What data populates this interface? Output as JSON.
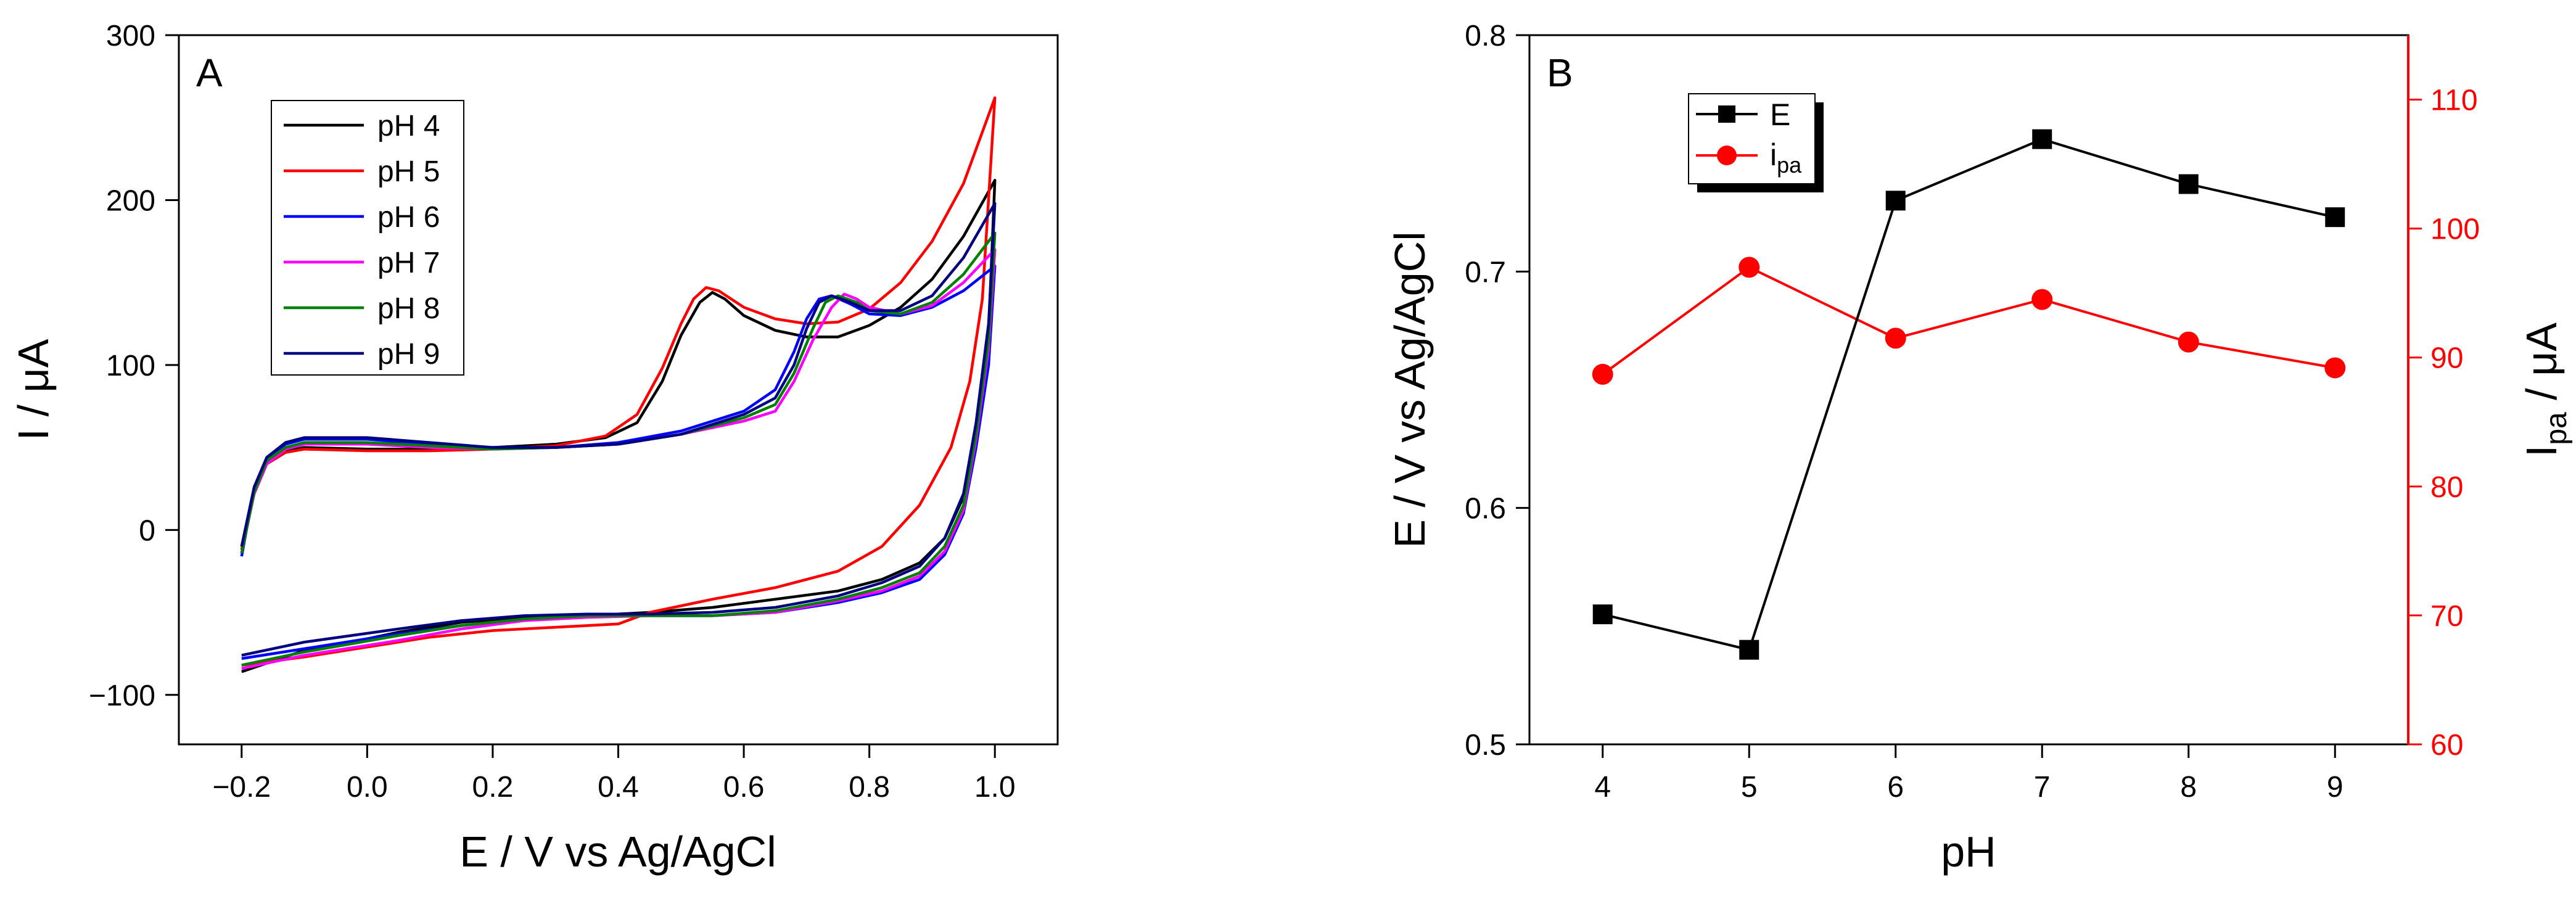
{
  "chart_data": [
    {
      "panel": "A",
      "type": "line",
      "xlabel": "E / V vs Ag/AgCl",
      "ylabel": "I / μA",
      "xlim": [
        -0.3,
        1.1
      ],
      "ylim": [
        -130,
        300
      ],
      "xticks": [
        -0.2,
        0.0,
        0.2,
        0.4,
        0.6,
        0.8,
        1.0
      ],
      "xtick_labels": [
        "−0.2",
        "0.0",
        "0.2",
        "0.4",
        "0.6",
        "0.8",
        "1.0"
      ],
      "yticks": [
        -100,
        0,
        100,
        200,
        300
      ],
      "ytick_labels": [
        "−100",
        "0",
        "100",
        "200",
        "300"
      ],
      "legend_position": "top-left",
      "series": [
        {
          "name": "pH 4",
          "color": "#000000",
          "forward": [
            [
              -0.2,
              -10
            ],
            [
              -0.18,
              22
            ],
            [
              -0.16,
              40
            ],
            [
              -0.13,
              48
            ],
            [
              -0.1,
              50
            ],
            [
              0,
              49
            ],
            [
              0.1,
              49
            ],
            [
              0.2,
              50
            ],
            [
              0.3,
              52
            ],
            [
              0.38,
              56
            ],
            [
              0.43,
              65
            ],
            [
              0.47,
              90
            ],
            [
              0.5,
              118
            ],
            [
              0.53,
              138
            ],
            [
              0.55,
              144
            ],
            [
              0.57,
              140
            ],
            [
              0.6,
              130
            ],
            [
              0.65,
              121
            ],
            [
              0.7,
              117
            ],
            [
              0.75,
              117
            ],
            [
              0.8,
              124
            ],
            [
              0.85,
              135
            ],
            [
              0.9,
              152
            ],
            [
              0.95,
              178
            ],
            [
              1.0,
              212
            ]
          ],
          "reverse": [
            [
              1.0,
              212
            ],
            [
              0.99,
              120
            ],
            [
              0.97,
              60
            ],
            [
              0.95,
              20
            ],
            [
              0.92,
              -5
            ],
            [
              0.88,
              -20
            ],
            [
              0.82,
              -30
            ],
            [
              0.75,
              -37
            ],
            [
              0.65,
              -42
            ],
            [
              0.55,
              -47
            ],
            [
              0.45,
              -50
            ],
            [
              0.35,
              -52
            ],
            [
              0.25,
              -53
            ],
            [
              0.15,
              -56
            ],
            [
              0.05,
              -62
            ],
            [
              0.0,
              -66
            ],
            [
              -0.1,
              -73
            ],
            [
              -0.2,
              -86
            ]
          ]
        },
        {
          "name": "pH 5",
          "color": "#ff0000",
          "forward": [
            [
              -0.2,
              -12
            ],
            [
              -0.18,
              22
            ],
            [
              -0.16,
              40
            ],
            [
              -0.13,
              47
            ],
            [
              -0.1,
              49
            ],
            [
              0,
              48
            ],
            [
              0.1,
              48
            ],
            [
              0.2,
              49
            ],
            [
              0.3,
              51
            ],
            [
              0.38,
              57
            ],
            [
              0.43,
              70
            ],
            [
              0.47,
              98
            ],
            [
              0.5,
              125
            ],
            [
              0.52,
              140
            ],
            [
              0.54,
              147
            ],
            [
              0.56,
              145
            ],
            [
              0.6,
              135
            ],
            [
              0.65,
              128
            ],
            [
              0.7,
              125
            ],
            [
              0.75,
              126
            ],
            [
              0.8,
              134
            ],
            [
              0.85,
              150
            ],
            [
              0.9,
              175
            ],
            [
              0.95,
              210
            ],
            [
              1.0,
              262
            ]
          ],
          "reverse": [
            [
              1.0,
              262
            ],
            [
              0.98,
              140
            ],
            [
              0.96,
              90
            ],
            [
              0.93,
              50
            ],
            [
              0.88,
              15
            ],
            [
              0.82,
              -10
            ],
            [
              0.75,
              -25
            ],
            [
              0.65,
              -35
            ],
            [
              0.55,
              -42
            ],
            [
              0.45,
              -50
            ],
            [
              0.4,
              -57
            ],
            [
              0.3,
              -59
            ],
            [
              0.2,
              -61
            ],
            [
              0.1,
              -65
            ],
            [
              0.0,
              -71
            ],
            [
              -0.1,
              -77
            ],
            [
              -0.2,
              -82
            ]
          ]
        },
        {
          "name": "pH 6",
          "color": "#0000ff",
          "forward": [
            [
              -0.2,
              -16
            ],
            [
              -0.18,
              25
            ],
            [
              -0.16,
              43
            ],
            [
              -0.13,
              52
            ],
            [
              -0.1,
              55
            ],
            [
              0,
              55
            ],
            [
              0.1,
              52
            ],
            [
              0.2,
              50
            ],
            [
              0.3,
              50
            ],
            [
              0.4,
              53
            ],
            [
              0.5,
              60
            ],
            [
              0.6,
              72
            ],
            [
              0.65,
              85
            ],
            [
              0.68,
              108
            ],
            [
              0.7,
              128
            ],
            [
              0.72,
              140
            ],
            [
              0.74,
              142
            ],
            [
              0.77,
              137
            ],
            [
              0.8,
              131
            ],
            [
              0.85,
              130
            ],
            [
              0.9,
              135
            ],
            [
              0.95,
              145
            ],
            [
              1.0,
              160
            ]
          ],
          "reverse": [
            [
              1.0,
              160
            ],
            [
              0.99,
              100
            ],
            [
              0.97,
              50
            ],
            [
              0.95,
              10
            ],
            [
              0.92,
              -15
            ],
            [
              0.88,
              -30
            ],
            [
              0.82,
              -38
            ],
            [
              0.75,
              -44
            ],
            [
              0.65,
              -50
            ],
            [
              0.55,
              -52
            ],
            [
              0.45,
              -52
            ],
            [
              0.35,
              -52
            ],
            [
              0.25,
              -54
            ],
            [
              0.15,
              -58
            ],
            [
              0.05,
              -63
            ],
            [
              -0.1,
              -72
            ],
            [
              -0.2,
              -78
            ]
          ]
        },
        {
          "name": "pH 7",
          "color": "#ff00ff",
          "forward": [
            [
              -0.2,
              -14
            ],
            [
              -0.18,
              22
            ],
            [
              -0.16,
              40
            ],
            [
              -0.13,
              49
            ],
            [
              -0.1,
              52
            ],
            [
              0,
              52
            ],
            [
              0.1,
              50
            ],
            [
              0.2,
              49
            ],
            [
              0.3,
              50
            ],
            [
              0.4,
              52
            ],
            [
              0.5,
              58
            ],
            [
              0.6,
              66
            ],
            [
              0.65,
              72
            ],
            [
              0.68,
              90
            ],
            [
              0.71,
              115
            ],
            [
              0.74,
              135
            ],
            [
              0.76,
              143
            ],
            [
              0.78,
              140
            ],
            [
              0.8,
              135
            ],
            [
              0.85,
              131
            ],
            [
              0.9,
              136
            ],
            [
              0.95,
              150
            ],
            [
              1.0,
              170
            ]
          ],
          "reverse": [
            [
              1.0,
              170
            ],
            [
              0.99,
              110
            ],
            [
              0.97,
              55
            ],
            [
              0.95,
              12
            ],
            [
              0.92,
              -13
            ],
            [
              0.88,
              -28
            ],
            [
              0.82,
              -37
            ],
            [
              0.75,
              -43
            ],
            [
              0.65,
              -50
            ],
            [
              0.55,
              -52
            ],
            [
              0.45,
              -52
            ],
            [
              0.35,
              -53
            ],
            [
              0.25,
              -55
            ],
            [
              0.15,
              -60
            ],
            [
              0.05,
              -67
            ],
            [
              -0.1,
              -76
            ],
            [
              -0.2,
              -84
            ]
          ]
        },
        {
          "name": "pH 8",
          "color": "#008000",
          "forward": [
            [
              -0.2,
              -14
            ],
            [
              -0.18,
              23
            ],
            [
              -0.16,
              42
            ],
            [
              -0.13,
              50
            ],
            [
              -0.1,
              53
            ],
            [
              0,
              53
            ],
            [
              0.1,
              51
            ],
            [
              0.2,
              49
            ],
            [
              0.3,
              50
            ],
            [
              0.4,
              52
            ],
            [
              0.5,
              58
            ],
            [
              0.6,
              68
            ],
            [
              0.65,
              76
            ],
            [
              0.68,
              95
            ],
            [
              0.71,
              122
            ],
            [
              0.73,
              138
            ],
            [
              0.75,
              142
            ],
            [
              0.78,
              138
            ],
            [
              0.8,
              133
            ],
            [
              0.85,
              131
            ],
            [
              0.9,
              138
            ],
            [
              0.95,
              155
            ],
            [
              1.0,
              180
            ]
          ],
          "reverse": [
            [
              1.0,
              180
            ],
            [
              0.99,
              115
            ],
            [
              0.97,
              58
            ],
            [
              0.95,
              15
            ],
            [
              0.92,
              -10
            ],
            [
              0.88,
              -26
            ],
            [
              0.82,
              -35
            ],
            [
              0.75,
              -42
            ],
            [
              0.65,
              -49
            ],
            [
              0.55,
              -52
            ],
            [
              0.45,
              -52
            ],
            [
              0.35,
              -52
            ],
            [
              0.25,
              -54
            ],
            [
              0.15,
              -58
            ],
            [
              0.05,
              -64
            ],
            [
              -0.1,
              -74
            ],
            [
              -0.2,
              -82
            ]
          ]
        },
        {
          "name": "pH 9",
          "color": "#000080",
          "forward": [
            [
              -0.2,
              -10
            ],
            [
              -0.18,
              26
            ],
            [
              -0.16,
              44
            ],
            [
              -0.13,
              53
            ],
            [
              -0.1,
              56
            ],
            [
              0,
              56
            ],
            [
              0.1,
              53
            ],
            [
              0.2,
              50
            ],
            [
              0.3,
              50
            ],
            [
              0.4,
              52
            ],
            [
              0.5,
              58
            ],
            [
              0.6,
              70
            ],
            [
              0.65,
              80
            ],
            [
              0.68,
              100
            ],
            [
              0.7,
              122
            ],
            [
              0.72,
              138
            ],
            [
              0.74,
              142
            ],
            [
              0.77,
              138
            ],
            [
              0.8,
              133
            ],
            [
              0.85,
              133
            ],
            [
              0.9,
              142
            ],
            [
              0.95,
              165
            ],
            [
              1.0,
              198
            ]
          ],
          "reverse": [
            [
              1.0,
              198
            ],
            [
              0.99,
              125
            ],
            [
              0.97,
              65
            ],
            [
              0.95,
              22
            ],
            [
              0.92,
              -5
            ],
            [
              0.88,
              -22
            ],
            [
              0.82,
              -32
            ],
            [
              0.75,
              -40
            ],
            [
              0.65,
              -47
            ],
            [
              0.55,
              -50
            ],
            [
              0.45,
              -51
            ],
            [
              0.35,
              -51
            ],
            [
              0.25,
              -52
            ],
            [
              0.15,
              -55
            ],
            [
              0.05,
              -60
            ],
            [
              -0.1,
              -68
            ],
            [
              -0.2,
              -76
            ]
          ]
        }
      ]
    },
    {
      "panel": "B",
      "type": "line",
      "xlabel": "pH",
      "ylabel": "E / V vs Ag/AgCl",
      "ylabel_right_main": "I",
      "ylabel_right_sub": "pa",
      "ylabel_right_suffix": " / μA",
      "xlim": [
        3.5,
        9.5
      ],
      "ylim": [
        0.5,
        0.8
      ],
      "y2lim": [
        60,
        115
      ],
      "xticks": [
        4,
        5,
        6,
        7,
        8,
        9
      ],
      "xtick_labels": [
        "4",
        "5",
        "6",
        "7",
        "8",
        "9"
      ],
      "yticks": [
        0.5,
        0.6,
        0.7,
        0.8
      ],
      "ytick_labels": [
        "0.5",
        "0.6",
        "0.7",
        "0.8"
      ],
      "y2ticks": [
        60,
        70,
        80,
        90,
        100,
        110
      ],
      "y2tick_labels": [
        "60",
        "70",
        "80",
        "90",
        "100",
        "110"
      ],
      "legend_position": "top-left",
      "categories": [
        4,
        5,
        6,
        7,
        8,
        9
      ],
      "series": [
        {
          "name": "E",
          "axis": "left",
          "marker": "square",
          "color": "#000000",
          "values": [
            0.555,
            0.54,
            0.73,
            0.756,
            0.737,
            0.723
          ]
        },
        {
          "name_main": "i",
          "name_sub": "pa",
          "axis": "right",
          "marker": "circle",
          "color": "#ff0000",
          "values": [
            88.7,
            97.0,
            91.5,
            94.5,
            91.2,
            89.2
          ]
        }
      ]
    }
  ],
  "panel_labels": [
    "A",
    "B"
  ],
  "colors": {
    "axis": "#000000",
    "right_axis": "#ff0000"
  }
}
